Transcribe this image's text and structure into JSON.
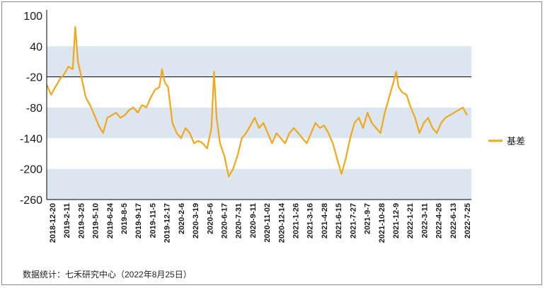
{
  "chart_data": {
    "type": "line",
    "title": "",
    "xlabel": "",
    "ylabel": "",
    "ylim": [
      -260,
      100
    ],
    "yticks": [
      100,
      40,
      -20,
      -80,
      -140,
      -200,
      -260
    ],
    "reference_line": -20,
    "bands": [
      [
        -20,
        40
      ],
      [
        -140,
        -80
      ],
      [
        -260,
        -200
      ]
    ],
    "grid": false,
    "legend_position": "right",
    "colors": {
      "series": "#F2A71B",
      "band": "#DCE6F0",
      "axis": "#000000"
    },
    "x_tick_labels": [
      "2018-12-20",
      "2019-2-11",
      "2019-3-25",
      "2019-5-10",
      "2019-6-24",
      "2019-8-5",
      "2019-9-17",
      "2019-11-5",
      "2019-12-17",
      "2020-2-6",
      "2020-3-19",
      "2020-5-6",
      "2020-6-17",
      "2020-7-31",
      "2020-9-11",
      "2020-11-02",
      "2020-12-14",
      "2021-1-26",
      "2021-3-16",
      "2021-4-28",
      "2021-6-15",
      "2021-7-27",
      "2021-9-7",
      "2021-10-28",
      "2021-12-9",
      "2022-1-21",
      "2022-3-11",
      "2022-4-26",
      "2022-6-13",
      "2022-7-25"
    ],
    "series": [
      {
        "name": "基差",
        "points": [
          [
            0,
            -35
          ],
          [
            0.5,
            -55
          ],
          [
            1,
            -40
          ],
          [
            1.5,
            -25
          ],
          [
            2,
            -15
          ],
          [
            2.5,
            0
          ],
          [
            3,
            -5
          ],
          [
            3.3,
            78
          ],
          [
            3.6,
            10
          ],
          [
            4,
            -20
          ],
          [
            4.5,
            -60
          ],
          [
            5,
            -75
          ],
          [
            5.5,
            -95
          ],
          [
            6,
            -115
          ],
          [
            6.5,
            -130
          ],
          [
            7,
            -100
          ],
          [
            7.5,
            -95
          ],
          [
            8,
            -90
          ],
          [
            8.5,
            -100
          ],
          [
            9,
            -95
          ],
          [
            9.5,
            -85
          ],
          [
            10,
            -80
          ],
          [
            10.5,
            -90
          ],
          [
            11,
            -75
          ],
          [
            11.5,
            -80
          ],
          [
            12,
            -60
          ],
          [
            12.5,
            -45
          ],
          [
            13,
            -40
          ],
          [
            13.3,
            -5
          ],
          [
            13.6,
            -30
          ],
          [
            14,
            -40
          ],
          [
            14.5,
            -110
          ],
          [
            15,
            -130
          ],
          [
            15.5,
            -140
          ],
          [
            16,
            -120
          ],
          [
            16.5,
            -130
          ],
          [
            17,
            -150
          ],
          [
            17.5,
            -145
          ],
          [
            18,
            -150
          ],
          [
            18.5,
            -160
          ],
          [
            19,
            -120
          ],
          [
            19.3,
            -10
          ],
          [
            19.6,
            -100
          ],
          [
            20,
            -150
          ],
          [
            20.5,
            -175
          ],
          [
            21,
            -215
          ],
          [
            21.5,
            -200
          ],
          [
            22,
            -175
          ],
          [
            22.5,
            -140
          ],
          [
            23,
            -130
          ],
          [
            23.5,
            -115
          ],
          [
            24,
            -100
          ],
          [
            24.5,
            -120
          ],
          [
            25,
            -110
          ],
          [
            25.5,
            -130
          ],
          [
            26,
            -150
          ],
          [
            26.5,
            -130
          ],
          [
            27,
            -140
          ],
          [
            27.5,
            -150
          ],
          [
            28,
            -130
          ],
          [
            28.5,
            -120
          ],
          [
            29,
            -130
          ],
          [
            29.5,
            -140
          ],
          [
            30,
            -150
          ],
          [
            30.5,
            -130
          ],
          [
            31,
            -110
          ],
          [
            31.5,
            -120
          ],
          [
            32,
            -115
          ],
          [
            32.5,
            -130
          ],
          [
            33,
            -150
          ],
          [
            33.5,
            -180
          ],
          [
            34,
            -210
          ],
          [
            34.5,
            -180
          ],
          [
            35,
            -140
          ],
          [
            35.5,
            -110
          ],
          [
            36,
            -100
          ],
          [
            36.5,
            -120
          ],
          [
            37,
            -90
          ],
          [
            37.5,
            -110
          ],
          [
            38,
            -120
          ],
          [
            38.5,
            -130
          ],
          [
            39,
            -90
          ],
          [
            39.5,
            -60
          ],
          [
            40,
            -30
          ],
          [
            40.3,
            -10
          ],
          [
            40.6,
            -40
          ],
          [
            41,
            -50
          ],
          [
            41.5,
            -55
          ],
          [
            42,
            -80
          ],
          [
            42.5,
            -100
          ],
          [
            43,
            -130
          ],
          [
            43.5,
            -110
          ],
          [
            44,
            -100
          ],
          [
            44.5,
            -120
          ],
          [
            45,
            -130
          ],
          [
            45.5,
            -110
          ],
          [
            46,
            -100
          ],
          [
            46.5,
            -95
          ],
          [
            47,
            -90
          ],
          [
            47.5,
            -85
          ],
          [
            48,
            -80
          ],
          [
            48.5,
            -95
          ]
        ]
      }
    ],
    "source": "数据统计：七禾研究中心（2022年8月25日）"
  }
}
